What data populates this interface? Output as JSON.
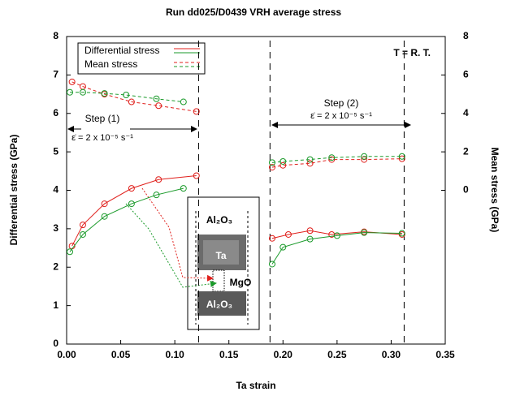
{
  "chart_data": {
    "type": "line",
    "title": "Run dd025/D0439   VRH average stress",
    "x_label": "Ta strain",
    "y_label": "Differential stress (GPa)",
    "y2_label": "Mean stress (GPa)",
    "xlim": [
      0,
      0.35
    ],
    "ylim": [
      0,
      8
    ],
    "y2lim": [
      -8,
      8
    ],
    "xticks": [
      {
        "value": 0,
        "label": "0.00"
      },
      {
        "value": 0.05,
        "label": "0.05"
      },
      {
        "value": 0.1,
        "label": "0.10"
      },
      {
        "value": 0.15,
        "label": "0.15"
      },
      {
        "value": 0.2,
        "label": "0.20"
      },
      {
        "value": 0.25,
        "label": "0.25"
      },
      {
        "value": 0.3,
        "label": "0.30"
      },
      {
        "value": 0.35,
        "label": "0.35"
      }
    ],
    "yticks": [
      0,
      1,
      2,
      3,
      4,
      5,
      6,
      7,
      8
    ],
    "y2ticks": [
      0,
      2,
      4,
      6,
      8
    ],
    "legend": [
      {
        "label": "Differential stress",
        "style": "solid"
      },
      {
        "label": "Mean stress",
        "style": "dashed"
      }
    ],
    "legend_colors": [
      "#e0201c",
      "#1a9a2a"
    ],
    "series": [
      {
        "color": "#e0201c",
        "style": "solid",
        "x": [
          0.005,
          0.015,
          0.035,
          0.06,
          0.085,
          0.12,
          null,
          0.19,
          0.205,
          0.225,
          0.245,
          0.275,
          0.31
        ],
        "values": [
          2.55,
          3.1,
          3.65,
          4.05,
          4.28,
          4.38,
          null,
          2.75,
          2.85,
          2.95,
          2.85,
          2.92,
          2.85
        ]
      },
      {
        "color": "#1a9a2a",
        "style": "solid",
        "x": [
          0.003,
          0.015,
          0.035,
          0.06,
          0.083,
          0.108,
          null,
          0.19,
          0.2,
          0.225,
          0.25,
          0.275,
          0.31
        ],
        "values": [
          2.4,
          2.85,
          3.32,
          3.65,
          3.88,
          4.05,
          null,
          2.08,
          2.52,
          2.73,
          2.82,
          2.9,
          2.88
        ]
      },
      {
        "color": "#e0201c",
        "style": "dashed",
        "axis": "y2",
        "x": [
          0.005,
          0.015,
          0.035,
          0.06,
          0.085,
          0.12,
          null,
          0.19,
          0.2,
          0.225,
          0.245,
          0.275,
          0.31
        ],
        "values": [
          5.64,
          5.4,
          5.0,
          4.6,
          4.4,
          4.1,
          null,
          1.2,
          1.3,
          1.4,
          1.6,
          1.6,
          1.64
        ]
      },
      {
        "color": "#1a9a2a",
        "style": "dashed",
        "axis": "y2",
        "x": [
          0.003,
          0.015,
          0.035,
          0.055,
          0.083,
          0.108,
          null,
          0.19,
          0.2,
          0.225,
          0.245,
          0.275,
          0.31
        ],
        "values": [
          5.1,
          5.1,
          5.04,
          4.96,
          4.76,
          4.6,
          null,
          1.44,
          1.5,
          1.6,
          1.7,
          1.76,
          1.76
        ]
      }
    ],
    "vlines": [
      0.122,
      0.188,
      0.312
    ],
    "annotations": {
      "condition": "T = R. T.",
      "step1": "Step (1)",
      "rate1": "ε̇ = 2 x 10⁻⁵ s⁻¹",
      "step2": "Step (2)",
      "rate2": "ε̇ = 2 x 10⁻⁵ s⁻¹"
    },
    "inset": {
      "top": "Al₂O₃",
      "middle": "Ta",
      "sample": "MgO",
      "bottom": "Al₂O₃"
    }
  }
}
